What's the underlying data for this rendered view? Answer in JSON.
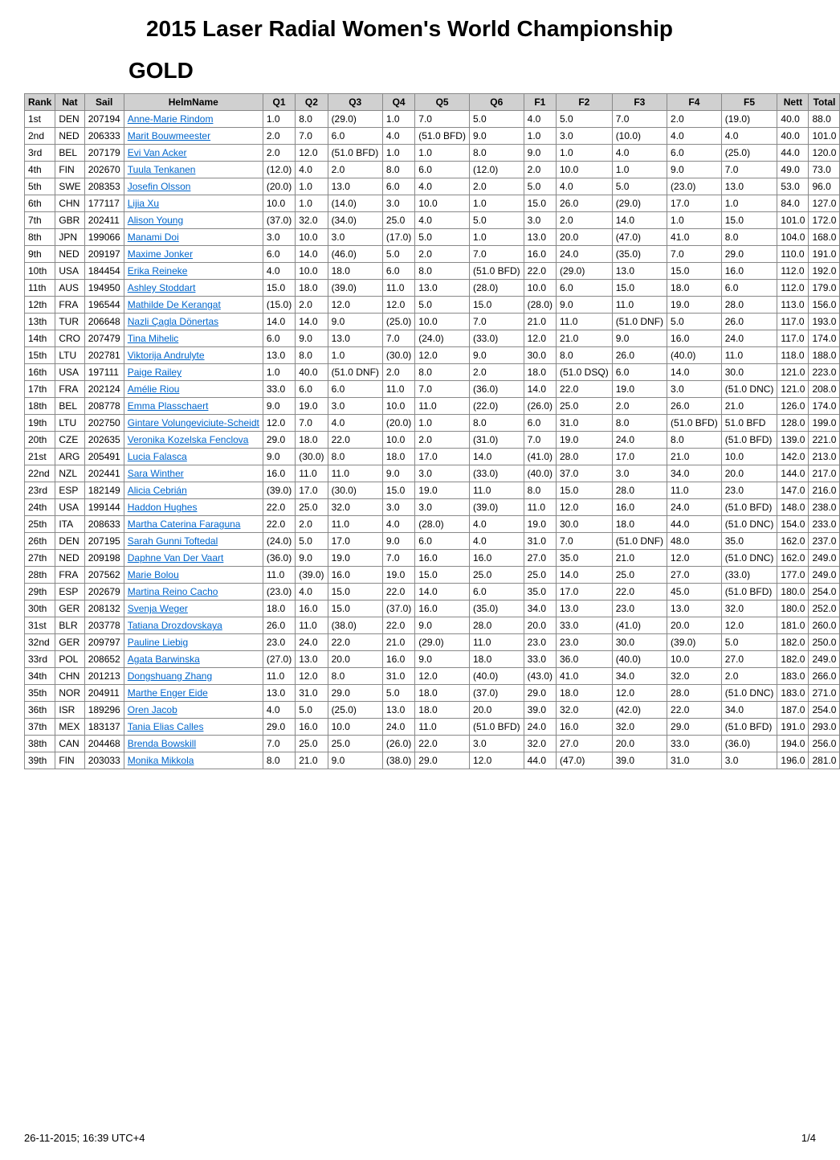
{
  "title": "2015 Laser Radial Women's World Championship",
  "group": "GOLD",
  "footer_left": "26-11-2015; 16:39 UTC+4",
  "footer_right": "1/4",
  "columns": [
    "Rank",
    "Nat",
    "Sail",
    "HelmName",
    "Q1",
    "Q2",
    "Q3",
    "Q4",
    "Q5",
    "Q6",
    "F1",
    "F2",
    "F3",
    "F4",
    "F5",
    "Nett",
    "Total"
  ],
  "column_align": [
    "left",
    "left",
    "left",
    "left",
    "left",
    "left",
    "left",
    "left",
    "left",
    "left",
    "left",
    "left",
    "left",
    "left",
    "left",
    "left",
    "left"
  ],
  "header_bg": "#d0d0d0",
  "link_color": "#0066cc",
  "rows": [
    [
      "1st",
      "DEN",
      "207194",
      "Anne-Marie Rindom",
      "1.0",
      "8.0",
      "(29.0)",
      "1.0",
      "7.0",
      "5.0",
      "4.0",
      "5.0",
      "7.0",
      "2.0",
      "(19.0)",
      "40.0",
      "88.0"
    ],
    [
      "2nd",
      "NED",
      "206333",
      "Marit Bouwmeester",
      "2.0",
      "7.0",
      "6.0",
      "4.0",
      "(51.0 BFD)",
      "9.0",
      "1.0",
      "3.0",
      "(10.0)",
      "4.0",
      "4.0",
      "40.0",
      "101.0"
    ],
    [
      "3rd",
      "BEL",
      "207179",
      "Evi Van Acker",
      "2.0",
      "12.0",
      "(51.0 BFD)",
      "1.0",
      "1.0",
      "8.0",
      "9.0",
      "1.0",
      "4.0",
      "6.0",
      "(25.0)",
      "44.0",
      "120.0"
    ],
    [
      "4th",
      "FIN",
      "202670",
      "Tuula Tenkanen",
      "(12.0)",
      "4.0",
      "2.0",
      "8.0",
      "6.0",
      "(12.0)",
      "2.0",
      "10.0",
      "1.0",
      "9.0",
      "7.0",
      "49.0",
      "73.0"
    ],
    [
      "5th",
      "SWE",
      "208353",
      "Josefin Olsson",
      "(20.0)",
      "1.0",
      "13.0",
      "6.0",
      "4.0",
      "2.0",
      "5.0",
      "4.0",
      "5.0",
      "(23.0)",
      "13.0",
      "53.0",
      "96.0"
    ],
    [
      "6th",
      "CHN",
      "177117",
      "Lijia Xu",
      "10.0",
      "1.0",
      "(14.0)",
      "3.0",
      "10.0",
      "1.0",
      "15.0",
      "26.0",
      "(29.0)",
      "17.0",
      "1.0",
      "84.0",
      "127.0"
    ],
    [
      "7th",
      "GBR",
      "202411",
      "Alison Young",
      "(37.0)",
      "32.0",
      "(34.0)",
      "25.0",
      "4.0",
      "5.0",
      "3.0",
      "2.0",
      "14.0",
      "1.0",
      "15.0",
      "101.0",
      "172.0"
    ],
    [
      "8th",
      "JPN",
      "199066",
      "Manami Doi",
      "3.0",
      "10.0",
      "3.0",
      "(17.0)",
      "5.0",
      "1.0",
      "13.0",
      "20.0",
      "(47.0)",
      "41.0",
      "8.0",
      "104.0",
      "168.0"
    ],
    [
      "9th",
      "NED",
      "209197",
      "Maxime Jonker",
      "6.0",
      "14.0",
      "(46.0)",
      "5.0",
      "2.0",
      "7.0",
      "16.0",
      "24.0",
      "(35.0)",
      "7.0",
      "29.0",
      "110.0",
      "191.0"
    ],
    [
      "10th",
      "USA",
      "184454",
      "Erika Reineke",
      "4.0",
      "10.0",
      "18.0",
      "6.0",
      "8.0",
      "(51.0 BFD)",
      "22.0",
      "(29.0)",
      "13.0",
      "15.0",
      "16.0",
      "112.0",
      "192.0"
    ],
    [
      "11th",
      "AUS",
      "194950",
      "Ashley Stoddart",
      "15.0",
      "18.0",
      "(39.0)",
      "11.0",
      "13.0",
      "(28.0)",
      "10.0",
      "6.0",
      "15.0",
      "18.0",
      "6.0",
      "112.0",
      "179.0"
    ],
    [
      "12th",
      "FRA",
      "196544",
      "Mathilde De Kerangat",
      "(15.0)",
      "2.0",
      "12.0",
      "12.0",
      "5.0",
      "15.0",
      "(28.0)",
      "9.0",
      "11.0",
      "19.0",
      "28.0",
      "113.0",
      "156.0"
    ],
    [
      "13th",
      "TUR",
      "206648",
      "Nazli Çagla Dönertas",
      "14.0",
      "14.0",
      "9.0",
      "(25.0)",
      "10.0",
      "7.0",
      "21.0",
      "11.0",
      "(51.0 DNF)",
      "5.0",
      "26.0",
      "117.0",
      "193.0"
    ],
    [
      "14th",
      "CRO",
      "207479",
      "Tina Mihelic",
      "6.0",
      "9.0",
      "13.0",
      "7.0",
      "(24.0)",
      "(33.0)",
      "12.0",
      "21.0",
      "9.0",
      "16.0",
      "24.0",
      "117.0",
      "174.0"
    ],
    [
      "15th",
      "LTU",
      "202781",
      "Viktorija Andrulyte",
      "13.0",
      "8.0",
      "1.0",
      "(30.0)",
      "12.0",
      "9.0",
      "30.0",
      "8.0",
      "26.0",
      "(40.0)",
      "11.0",
      "118.0",
      "188.0"
    ],
    [
      "16th",
      "USA",
      "197111",
      "Paige Railey",
      "1.0",
      "40.0",
      "(51.0 DNF)",
      "2.0",
      "8.0",
      "2.0",
      "18.0",
      "(51.0 DSQ)",
      "6.0",
      "14.0",
      "30.0",
      "121.0",
      "223.0"
    ],
    [
      "17th",
      "FRA",
      "202124",
      "Amélie Riou",
      "33.0",
      "6.0",
      "6.0",
      "11.0",
      "7.0",
      "(36.0)",
      "14.0",
      "22.0",
      "19.0",
      "3.0",
      "(51.0 DNC)",
      "121.0",
      "208.0"
    ],
    [
      "18th",
      "BEL",
      "208778",
      "Emma Plasschaert",
      "9.0",
      "19.0",
      "3.0",
      "10.0",
      "11.0",
      "(22.0)",
      "(26.0)",
      "25.0",
      "2.0",
      "26.0",
      "21.0",
      "126.0",
      "174.0"
    ],
    [
      "19th",
      "LTU",
      "202750",
      "Gintare Volungeviciute-Scheidt",
      "12.0",
      "7.0",
      "4.0",
      "(20.0)",
      "1.0",
      "8.0",
      "6.0",
      "31.0",
      "8.0",
      "(51.0 BFD)",
      "51.0 BFD",
      "128.0",
      "199.0"
    ],
    [
      "20th",
      "CZE",
      "202635",
      "Veronika Kozelska Fenclova",
      "29.0",
      "18.0",
      "22.0",
      "10.0",
      "2.0",
      "(31.0)",
      "7.0",
      "19.0",
      "24.0",
      "8.0",
      "(51.0 BFD)",
      "139.0",
      "221.0"
    ],
    [
      "21st",
      "ARG",
      "205491",
      "Lucia Falasca",
      "9.0",
      "(30.0)",
      "8.0",
      "18.0",
      "17.0",
      "14.0",
      "(41.0)",
      "28.0",
      "17.0",
      "21.0",
      "10.0",
      "142.0",
      "213.0"
    ],
    [
      "22nd",
      "NZL",
      "202441",
      "Sara Winther",
      "16.0",
      "11.0",
      "11.0",
      "9.0",
      "3.0",
      "(33.0)",
      "(40.0)",
      "37.0",
      "3.0",
      "34.0",
      "20.0",
      "144.0",
      "217.0"
    ],
    [
      "23rd",
      "ESP",
      "182149",
      "Alicia Cebrián",
      "(39.0)",
      "17.0",
      "(30.0)",
      "15.0",
      "19.0",
      "11.0",
      "8.0",
      "15.0",
      "28.0",
      "11.0",
      "23.0",
      "147.0",
      "216.0"
    ],
    [
      "24th",
      "USA",
      "199144",
      "Haddon Hughes",
      "22.0",
      "25.0",
      "32.0",
      "3.0",
      "3.0",
      "(39.0)",
      "11.0",
      "12.0",
      "16.0",
      "24.0",
      "(51.0 BFD)",
      "148.0",
      "238.0"
    ],
    [
      "25th",
      "ITA",
      "208633",
      "Martha Caterina Faraguna",
      "22.0",
      "2.0",
      "11.0",
      "4.0",
      "(28.0)",
      "4.0",
      "19.0",
      "30.0",
      "18.0",
      "44.0",
      "(51.0 DNC)",
      "154.0",
      "233.0"
    ],
    [
      "26th",
      "DEN",
      "207195",
      "Sarah Gunni Toftedal",
      "(24.0)",
      "5.0",
      "17.0",
      "9.0",
      "6.0",
      "4.0",
      "31.0",
      "7.0",
      "(51.0 DNF)",
      "48.0",
      "35.0",
      "162.0",
      "237.0"
    ],
    [
      "27th",
      "NED",
      "209198",
      "Daphne Van Der Vaart",
      "(36.0)",
      "9.0",
      "19.0",
      "7.0",
      "16.0",
      "16.0",
      "27.0",
      "35.0",
      "21.0",
      "12.0",
      "(51.0 DNC)",
      "162.0",
      "249.0"
    ],
    [
      "28th",
      "FRA",
      "207562",
      "Marie Bolou",
      "11.0",
      "(39.0)",
      "16.0",
      "19.0",
      "15.0",
      "25.0",
      "25.0",
      "14.0",
      "25.0",
      "27.0",
      "(33.0)",
      "177.0",
      "249.0"
    ],
    [
      "29th",
      "ESP",
      "202679",
      "Martina Reino Cacho",
      "(23.0)",
      "4.0",
      "15.0",
      "22.0",
      "14.0",
      "6.0",
      "35.0",
      "17.0",
      "22.0",
      "45.0",
      "(51.0 BFD)",
      "180.0",
      "254.0"
    ],
    [
      "30th",
      "GER",
      "208132",
      "Svenja Weger",
      "18.0",
      "16.0",
      "15.0",
      "(37.0)",
      "16.0",
      "(35.0)",
      "34.0",
      "13.0",
      "23.0",
      "13.0",
      "32.0",
      "180.0",
      "252.0"
    ],
    [
      "31st",
      "BLR",
      "203778",
      "Tatiana Drozdovskaya",
      "26.0",
      "11.0",
      "(38.0)",
      "22.0",
      "9.0",
      "28.0",
      "20.0",
      "33.0",
      "(41.0)",
      "20.0",
      "12.0",
      "181.0",
      "260.0"
    ],
    [
      "32nd",
      "GER",
      "209797",
      "Pauline Liebig",
      "23.0",
      "24.0",
      "22.0",
      "21.0",
      "(29.0)",
      "11.0",
      "23.0",
      "23.0",
      "30.0",
      "(39.0)",
      "5.0",
      "182.0",
      "250.0"
    ],
    [
      "33rd",
      "POL",
      "208652",
      "Agata Barwinska",
      "(27.0)",
      "13.0",
      "20.0",
      "16.0",
      "9.0",
      "18.0",
      "33.0",
      "36.0",
      "(40.0)",
      "10.0",
      "27.0",
      "182.0",
      "249.0"
    ],
    [
      "34th",
      "CHN",
      "201213",
      "Dongshuang Zhang",
      "11.0",
      "12.0",
      "8.0",
      "31.0",
      "12.0",
      "(40.0)",
      "(43.0)",
      "41.0",
      "34.0",
      "32.0",
      "2.0",
      "183.0",
      "266.0"
    ],
    [
      "35th",
      "NOR",
      "204911",
      "Marthe Enger Eide",
      "13.0",
      "31.0",
      "29.0",
      "5.0",
      "18.0",
      "(37.0)",
      "29.0",
      "18.0",
      "12.0",
      "28.0",
      "(51.0 DNC)",
      "183.0",
      "271.0"
    ],
    [
      "36th",
      "ISR",
      "189296",
      "Oren Jacob",
      "4.0",
      "5.0",
      "(25.0)",
      "13.0",
      "18.0",
      "20.0",
      "39.0",
      "32.0",
      "(42.0)",
      "22.0",
      "34.0",
      "187.0",
      "254.0"
    ],
    [
      "37th",
      "MEX",
      "183137",
      "Tania Elias Calles",
      "29.0",
      "16.0",
      "10.0",
      "24.0",
      "11.0",
      "(51.0 BFD)",
      "24.0",
      "16.0",
      "32.0",
      "29.0",
      "(51.0 BFD)",
      "191.0",
      "293.0"
    ],
    [
      "38th",
      "CAN",
      "204468",
      "Brenda Bowskill",
      "7.0",
      "25.0",
      "25.0",
      "(26.0)",
      "22.0",
      "3.0",
      "32.0",
      "27.0",
      "20.0",
      "33.0",
      "(36.0)",
      "194.0",
      "256.0"
    ],
    [
      "39th",
      "FIN",
      "203033",
      "Monika Mikkola",
      "8.0",
      "21.0",
      "9.0",
      "(38.0)",
      "29.0",
      "12.0",
      "44.0",
      "(47.0)",
      "39.0",
      "31.0",
      "3.0",
      "196.0",
      "281.0"
    ]
  ]
}
